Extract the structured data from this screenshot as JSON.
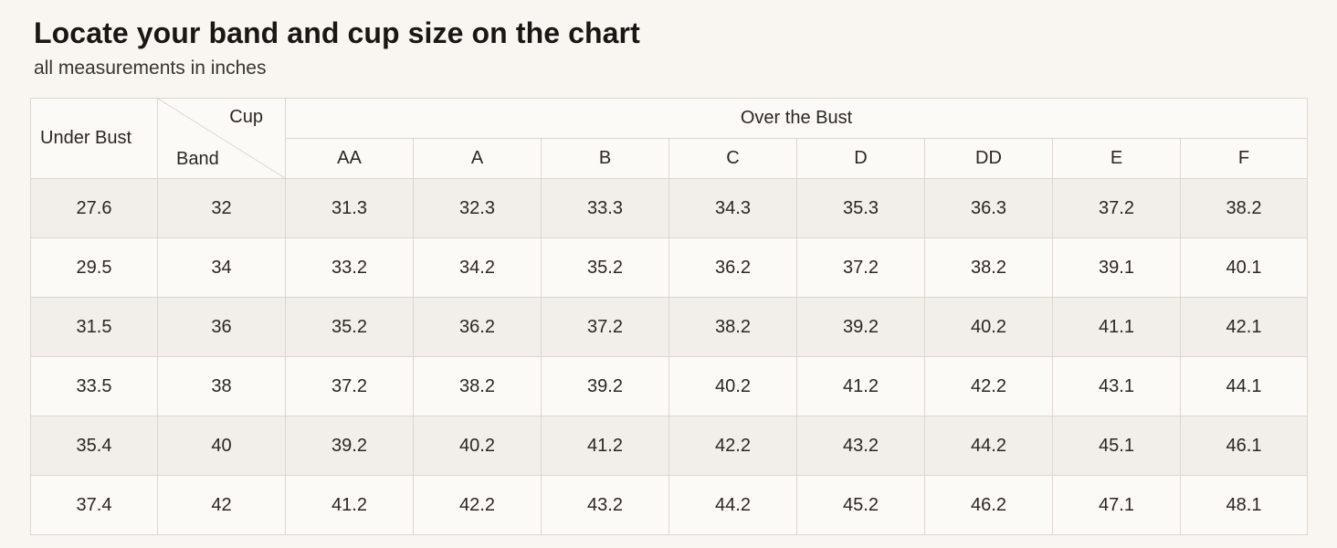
{
  "header": {
    "title": "Locate your band and cup size on the chart",
    "subtitle": "all measurements in inches"
  },
  "table": {
    "under_bust_label": "Under Bust",
    "cup_label": "Cup",
    "band_label": "Band",
    "over_bust_label": "Over the Bust",
    "cups": [
      "AA",
      "A",
      "B",
      "C",
      "D",
      "DD",
      "E",
      "F"
    ],
    "rows": [
      {
        "under_bust": "27.6",
        "band": "32",
        "values": [
          "31.3",
          "32.3",
          "33.3",
          "34.3",
          "35.3",
          "36.3",
          "37.2",
          "38.2"
        ]
      },
      {
        "under_bust": "29.5",
        "band": "34",
        "values": [
          "33.2",
          "34.2",
          "35.2",
          "36.2",
          "37.2",
          "38.2",
          "39.1",
          "40.1"
        ]
      },
      {
        "under_bust": "31.5",
        "band": "36",
        "values": [
          "35.2",
          "36.2",
          "37.2",
          "38.2",
          "39.2",
          "40.2",
          "41.1",
          "42.1"
        ]
      },
      {
        "under_bust": "33.5",
        "band": "38",
        "values": [
          "37.2",
          "38.2",
          "39.2",
          "40.2",
          "41.2",
          "42.2",
          "43.1",
          "44.1"
        ]
      },
      {
        "under_bust": "35.4",
        "band": "40",
        "values": [
          "39.2",
          "40.2",
          "41.2",
          "42.2",
          "43.2",
          "44.2",
          "45.1",
          "46.1"
        ]
      },
      {
        "under_bust": "37.4",
        "band": "42",
        "values": [
          "41.2",
          "42.2",
          "43.2",
          "44.2",
          "45.2",
          "46.2",
          "47.1",
          "48.1"
        ]
      }
    ]
  },
  "colors": {
    "background": "#f9f6f1",
    "shaded_row": "#f2eee9",
    "border": "#ddd6cf",
    "text": "#2b2623"
  }
}
